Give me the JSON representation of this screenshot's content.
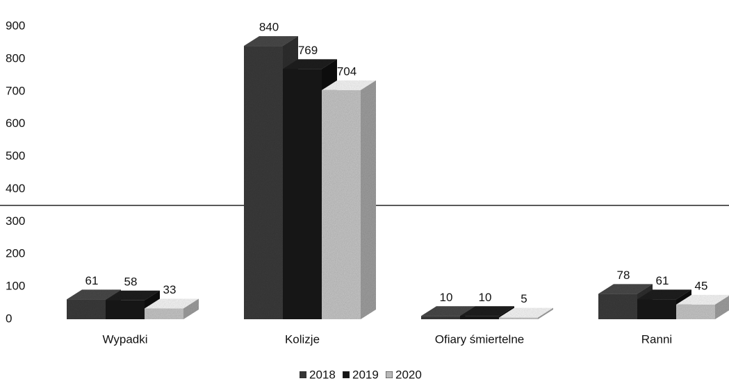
{
  "chart_data": {
    "type": "bar3d",
    "categories": [
      "Wypadki",
      "Kolizje",
      "Ofiary śmiertelne",
      "Ranni"
    ],
    "series": [
      {
        "name": "2018",
        "color": "#3c3c3c",
        "values": [
          61,
          840,
          10,
          78
        ]
      },
      {
        "name": "2019",
        "color": "#1c1c1c",
        "values": [
          58,
          769,
          10,
          61
        ]
      },
      {
        "name": "2020",
        "color": "#c9c9c9",
        "values": [
          33,
          704,
          5,
          45
        ]
      }
    ],
    "ylim": [
      0,
      900
    ],
    "yticks": [
      0,
      100,
      200,
      300,
      400,
      500,
      600,
      700,
      800,
      900
    ],
    "legend": "bottom"
  }
}
